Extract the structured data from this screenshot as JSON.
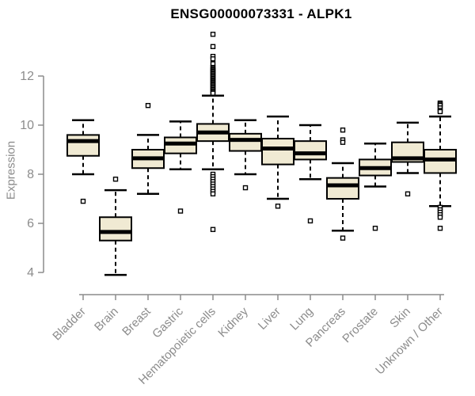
{
  "title": "ENSG00000073331 - ALPK1",
  "chart_data": {
    "type": "boxplot",
    "title": "ENSG00000073331 - ALPK1",
    "ylabel": "Expression",
    "xlabel": "",
    "yticks": [
      4,
      6,
      8,
      10,
      12
    ],
    "ylim": [
      3.5,
      13.9
    ],
    "grid": false,
    "categories": [
      "Bladder",
      "Brain",
      "Breast",
      "Gastric",
      "Hematopoietic cells",
      "Kidney",
      "Liver",
      "Lung",
      "Pancreas",
      "Prostate",
      "Skin",
      "Unknown / Other"
    ],
    "boxes": [
      {
        "label": "Bladder",
        "whisker_low": 8.0,
        "q1": 8.75,
        "median": 9.35,
        "q3": 9.6,
        "whisker_high": 10.2,
        "outliers": [
          6.9
        ]
      },
      {
        "label": "Brain",
        "whisker_low": 3.9,
        "q1": 5.3,
        "median": 5.65,
        "q3": 6.25,
        "whisker_high": 7.35,
        "outliers": [
          7.8
        ]
      },
      {
        "label": "Breast",
        "whisker_low": 7.2,
        "q1": 8.25,
        "median": 8.65,
        "q3": 9.0,
        "whisker_high": 9.6,
        "outliers": [
          10.8
        ]
      },
      {
        "label": "Gastric",
        "whisker_low": 8.2,
        "q1": 8.85,
        "median": 9.25,
        "q3": 9.5,
        "whisker_high": 10.15,
        "outliers": [
          6.5
        ]
      },
      {
        "label": "Hematopoietic cells",
        "whisker_low": 8.2,
        "q1": 9.35,
        "median": 9.7,
        "q3": 10.05,
        "whisker_high": 11.2,
        "outliers": [
          13.7,
          13.2,
          12.8,
          12.7,
          12.5,
          12.35,
          12.3,
          12.25,
          12.2,
          12.15,
          12.1,
          12.05,
          12.0,
          11.95,
          11.9,
          11.85,
          11.8,
          11.75,
          11.7,
          11.65,
          11.6,
          11.55,
          11.5,
          11.45,
          11.4,
          11.35,
          11.3,
          8.0,
          7.9,
          7.8,
          7.7,
          7.6,
          7.5,
          7.4,
          7.3,
          7.2,
          5.75
        ]
      },
      {
        "label": "Kidney",
        "whisker_low": 8.0,
        "q1": 8.95,
        "median": 9.4,
        "q3": 9.65,
        "whisker_high": 10.2,
        "outliers": [
          7.45
        ]
      },
      {
        "label": "Liver",
        "whisker_low": 7.0,
        "q1": 8.4,
        "median": 9.05,
        "q3": 9.45,
        "whisker_high": 10.35,
        "outliers": [
          6.7
        ]
      },
      {
        "label": "Lung",
        "whisker_low": 7.8,
        "q1": 8.6,
        "median": 8.85,
        "q3": 9.35,
        "whisker_high": 10.0,
        "outliers": [
          6.1
        ]
      },
      {
        "label": "Pancreas",
        "whisker_low": 5.7,
        "q1": 7.0,
        "median": 7.55,
        "q3": 7.85,
        "whisker_high": 8.45,
        "outliers": [
          9.8,
          9.4,
          9.3,
          5.4
        ]
      },
      {
        "label": "Prostate",
        "whisker_low": 7.5,
        "q1": 7.95,
        "median": 8.25,
        "q3": 8.6,
        "whisker_high": 9.25,
        "outliers": [
          5.8
        ]
      },
      {
        "label": "Skin",
        "whisker_low": 8.05,
        "q1": 8.5,
        "median": 8.65,
        "q3": 9.3,
        "whisker_high": 10.1,
        "outliers": [
          7.2
        ]
      },
      {
        "label": "Unknown / Other",
        "whisker_low": 6.7,
        "q1": 8.05,
        "median": 8.6,
        "q3": 9.0,
        "whisker_high": 10.35,
        "outliers": [
          10.9,
          10.85,
          10.8,
          10.7,
          10.6,
          10.55,
          6.65,
          6.55,
          6.45,
          6.35,
          6.25,
          5.8
        ]
      }
    ],
    "colors": {
      "box_fill": "#f0ead3",
      "box_border": "#000000",
      "median": "#000000",
      "whisker": "#000000",
      "outlier_border": "#000000",
      "outlier_fill": "#ffffff",
      "axis": "#8c8c8c",
      "tick_label": "#8c8c8c",
      "title": "#000000",
      "background": "#ffffff"
    }
  }
}
